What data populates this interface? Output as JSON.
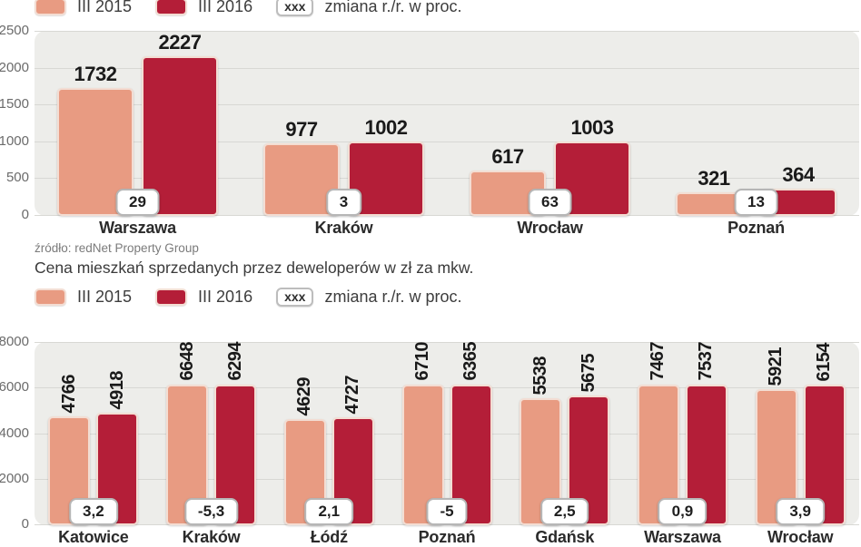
{
  "legend": {
    "series1_label": "III 2015",
    "series2_label": "III 2016",
    "badge_text": "xxx",
    "change_label": "zmiana r./r. w proc."
  },
  "source": "źródło: redNet Property Group",
  "colors": {
    "series1": "#E89B82",
    "series2": "#B41E38",
    "plot_background": "#EDEDEA",
    "gridline": "#D8D8D4"
  },
  "chart_data": [
    {
      "type": "bar",
      "title": "",
      "categories": [
        "Warszawa",
        "Kraków",
        "Wrocław",
        "Poznań"
      ],
      "series": [
        {
          "name": "III 2015",
          "values": [
            1732,
            977,
            617,
            321
          ]
        },
        {
          "name": "III 2016",
          "values": [
            2227,
            1002,
            1003,
            364
          ]
        }
      ],
      "change_labels": [
        "29",
        "3",
        "63",
        "13"
      ],
      "ylim": [
        0,
        2500
      ],
      "yticks": [
        0,
        500,
        1000,
        1500,
        2000,
        2500
      ],
      "grid": true,
      "legend_position": "top",
      "value_label_orientation": "horizontal"
    },
    {
      "type": "bar",
      "title": "Cena mieszkań sprzedanych przez deweloperów w zł za mkw.",
      "categories": [
        "Katowice",
        "Kraków",
        "Łódź",
        "Poznań",
        "Gdańsk",
        "Warszawa",
        "Wrocław"
      ],
      "series": [
        {
          "name": "III 2015",
          "values": [
            4766,
            6648,
            4629,
            6710,
            5538,
            7467,
            5921
          ]
        },
        {
          "name": "III 2016",
          "values": [
            4918,
            6294,
            4727,
            6365,
            5675,
            7537,
            6154
          ]
        }
      ],
      "change_labels": [
        "3,2",
        "-5,3",
        "2,1",
        "-5",
        "2,5",
        "0,9",
        "3,9"
      ],
      "ylim": [
        0,
        8000
      ],
      "yticks": [
        0,
        2000,
        4000,
        6000,
        8000
      ],
      "grid": true,
      "legend_position": "top",
      "value_label_orientation": "vertical"
    }
  ]
}
